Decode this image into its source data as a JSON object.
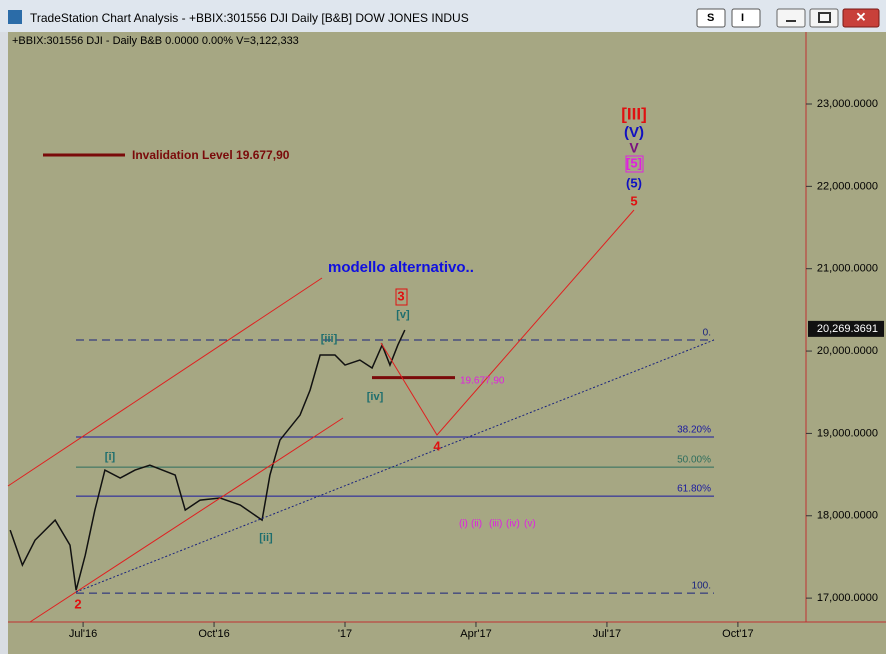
{
  "window": {
    "title": "TradeStation Chart Analysis - +BBIX:301556 DJI Daily [B&B] DOW JONES INDUS",
    "buttons": [
      "S",
      "I"
    ]
  },
  "legend": "+BBIX:301556 DJI - Daily  B&B  0.0000  0.00%  V=3,122,333",
  "annotations": {
    "invalidation": "Invalidation Level 19.677,90",
    "alt": "modello alternativo..",
    "w_III": "[III]",
    "w_V": "(V)",
    "w_Vp": "V",
    "w_5b": "[5]",
    "w_5p": "(5)",
    "w_5": "5",
    "w_3": "3",
    "w_v": "[v]",
    "w_iii": "[iii]",
    "w_iv": "[iv]",
    "inv_value": "19.677,90",
    "w_4": "4",
    "w_i": "[i]",
    "w_ii": "[ii]",
    "w_2": "2",
    "minor": [
      "(i)",
      "(ii)",
      "(iii)",
      "(iv)",
      "(v)"
    ]
  },
  "chart_data": {
    "type": "line",
    "color": "#111111",
    "x": [
      4.33,
      4.61,
      4.9,
      5.36,
      5.7,
      5.84,
      6.05,
      6.27,
      6.5,
      6.85,
      7.19,
      7.53,
      8.11,
      8.34,
      8.68,
      9.14,
      9.6,
      10.1,
      10.28,
      10.51,
      10.97,
      11.2,
      11.43,
      11.77,
      12,
      12.34,
      12.62,
      12.85,
      13.03,
      13.21,
      13.37
    ],
    "values": [
      17826,
      17401,
      17704,
      17947,
      17644,
      17097,
      17522,
      18069,
      18555,
      18458,
      18555,
      18615,
      18494,
      18069,
      18190,
      18215,
      18130,
      17947,
      18494,
      18919,
      19223,
      19526,
      19952,
      19952,
      19830,
      19891,
      19794,
      20073,
      19830,
      20073,
      20255
    ],
    "xlim": [
      4.28,
      22.56
    ],
    "xticks": [
      {
        "value": 6,
        "label": "Jul'16"
      },
      {
        "value": 9,
        "label": "Oct'16"
      },
      {
        "value": 12,
        "label": "'17"
      },
      {
        "value": 15,
        "label": "Apr'17"
      },
      {
        "value": 18,
        "label": "Jul'17"
      },
      {
        "value": 21,
        "label": "Oct'17"
      }
    ],
    "ylim": [
      16710,
      23850
    ],
    "yticks": [
      {
        "value": 17000,
        "label": "17,000.0000"
      },
      {
        "value": 18000,
        "label": "18,000.0000"
      },
      {
        "value": 19000,
        "label": "19,000.0000"
      },
      {
        "value": 20000,
        "label": "20,000.0000"
      },
      {
        "value": 21000,
        "label": "21,000.0000"
      },
      {
        "value": 22000,
        "label": "22,000.0000"
      },
      {
        "value": 23000,
        "label": "23,000.0000"
      }
    ],
    "last_price": {
      "value": 20269.3691,
      "label": "20,269.3691"
    },
    "invalidation_level": 19677.9,
    "fib_levels": [
      {
        "value": 20134,
        "label": "0.",
        "color": "#1a237e",
        "dash": true
      },
      {
        "value": 18956,
        "label": "38.20%",
        "color": "#1a1aa0",
        "dash": false
      },
      {
        "value": 18591,
        "label": "50.00%",
        "color": "#2e6e5e",
        "dash": false
      },
      {
        "value": 18239,
        "label": "61.80%",
        "color": "#1a1aa0",
        "dash": false
      },
      {
        "value": 17061,
        "label": "100.",
        "color": "#1a237e",
        "dash": true
      }
    ]
  }
}
